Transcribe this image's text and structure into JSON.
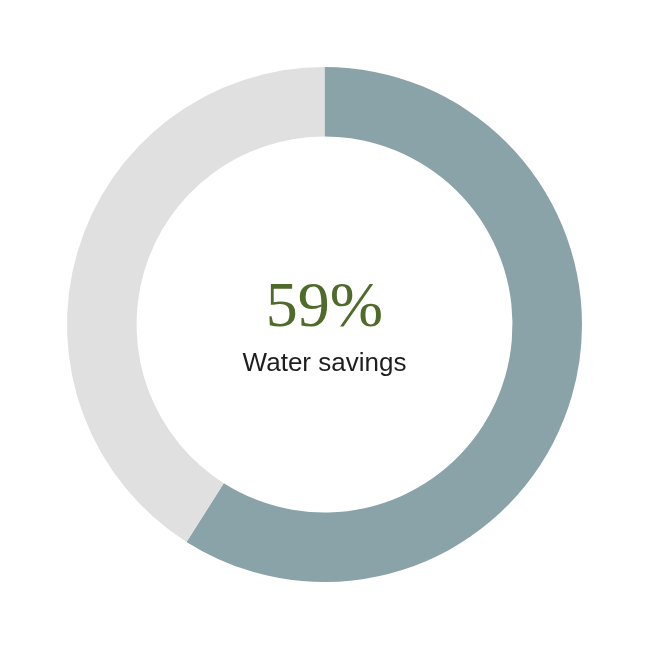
{
  "chart_data": {
    "type": "doughnut",
    "title": "Water savings",
    "values": [
      59,
      41
    ],
    "value_labels": [
      "59%",
      null
    ],
    "data_labels": true,
    "colors": [
      "#8aa3a8",
      "#e0e0e0"
    ]
  }
}
